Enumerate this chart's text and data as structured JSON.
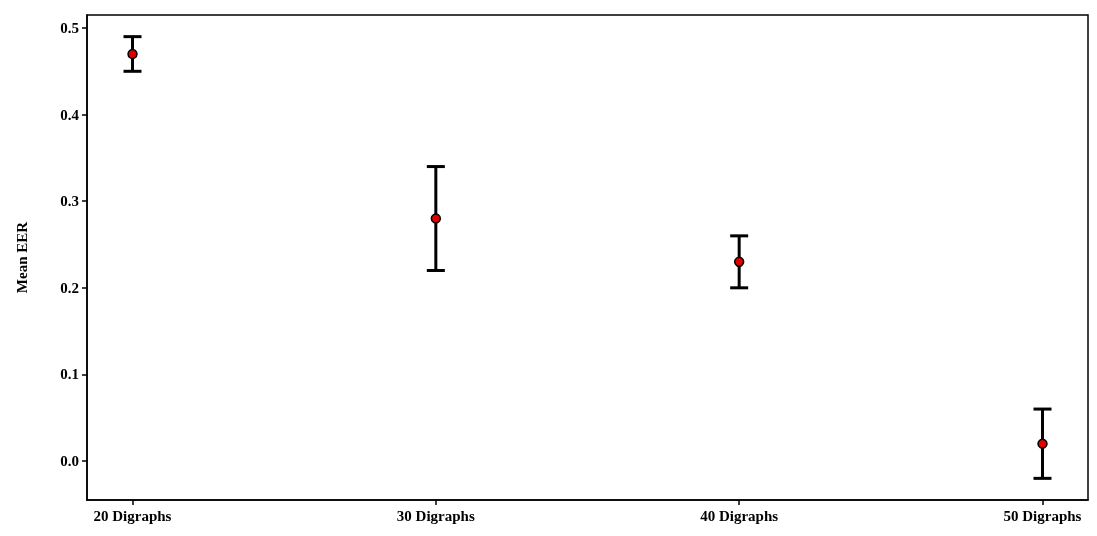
{
  "chart_data": {
    "type": "scatter",
    "ylabel": "Mean EER",
    "categories": [
      "20 Digraphs",
      "30 Digraphs",
      "40 Digraphs",
      "50 Digraphs"
    ],
    "values": [
      0.47,
      0.28,
      0.23,
      0.02
    ],
    "errors": [
      0.02,
      0.06,
      0.03,
      0.04
    ],
    "color": "#e00000",
    "marker": "circle",
    "ylim": [
      -0.045,
      0.515
    ],
    "yticks": [
      {
        "value": 0,
        "label": "0.0"
      },
      0.1,
      0.2,
      0.3,
      0.4,
      0.5
    ],
    "grid": false
  }
}
